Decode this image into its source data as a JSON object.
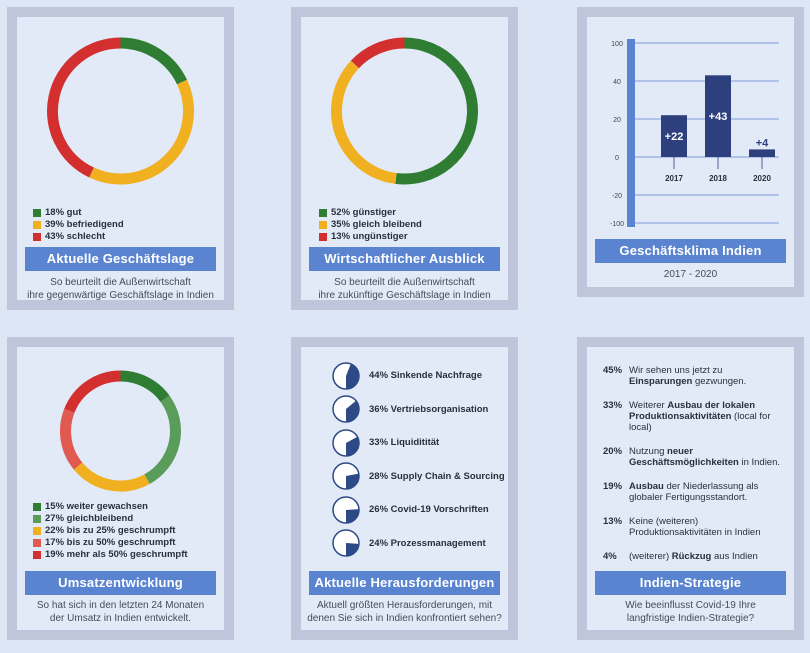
{
  "colors": {
    "green": "#2e7d32",
    "green_light": "#5a9c5a",
    "yellow": "#f0b020",
    "red": "#d32f2f",
    "red_light": "#e05a4f",
    "bar": "#2d3f7c",
    "banner": "#5b84d0",
    "pie_fill": "#2d4a86"
  },
  "cards": {
    "geschaeftslage": {
      "title": "Aktuelle Geschäftslage",
      "caption_line1": "So beurteilt die Außenwirtschaft",
      "caption_line2": "ihre gegenwärtige Geschäftslage in Indien",
      "legend": [
        "18% gut",
        "39% befriedigend",
        "43% schlecht"
      ]
    },
    "ausblick": {
      "title": "Wirtschaftlicher Ausblick",
      "caption_line1": "So beurteilt die Außenwirtschaft",
      "caption_line2": "ihre zukünftige Geschäftslage in Indien",
      "legend": [
        "52% günstiger",
        "35% gleich bleibend",
        "13% ungünstiger"
      ]
    },
    "klima": {
      "title": "Geschäftsklima Indien",
      "caption_line1": "2017 - 2020"
    },
    "umsatz": {
      "title": "Umsatzentwicklung",
      "caption_line1": "So hat sich in den letzten 24 Monaten",
      "caption_line2": "der Umsatz in Indien entwickelt.",
      "legend": [
        "15% weiter gewachsen",
        "27% gleichbleibend",
        "22% bis zu 25% geschrumpft",
        "17% bis zu 50% geschrumpft",
        "19% mehr als 50% geschrumpft"
      ]
    },
    "herausforderungen": {
      "title": "Aktuelle Herausforderungen",
      "caption_line1": "Aktuell größten Herausforderungen, mit",
      "caption_line2": "denen Sie sich in Indien konfrontiert sehen?",
      "items": [
        {
          "value": 44,
          "label": "44% Sinkende Nachfrage"
        },
        {
          "value": 36,
          "label": "36% Vertriebsorganisation"
        },
        {
          "value": 33,
          "label": "33% Liquiditität"
        },
        {
          "value": 28,
          "label": "28% Supply Chain & Sourcing"
        },
        {
          "value": 26,
          "label": "26% Covid-19 Vorschriften"
        },
        {
          "value": 24,
          "label": "24% Prozessmanagement"
        }
      ]
    },
    "strategie": {
      "title": "Indien-Strategie",
      "caption_line1": "Wie beeinflusst Covid-19 Ihre",
      "caption_line2": "langfristige Indien-Strategie?",
      "items": [
        {
          "pct": "45%",
          "pre": "Wir sehen uns jetzt zu ",
          "bold": "Einsparungen",
          "post": " gezwungen."
        },
        {
          "pct": "33%",
          "pre": "Weiterer ",
          "bold": "Ausbau der lokalen Produktionsaktivitäten",
          "post": " (local for local)"
        },
        {
          "pct": "20%",
          "pre": "Nutzung ",
          "bold": "neuer Geschäftsmöglichkeiten",
          "post": " in Indien."
        },
        {
          "pct": "19%",
          "pre": "",
          "bold": "Ausbau",
          "post": " der Niederlassung als globaler Fertigungsstandort."
        },
        {
          "pct": "13%",
          "pre": "Keine (weiteren) Produktionsaktivitäten in Indien",
          "bold": "",
          "post": ""
        },
        {
          "pct": "4%",
          "pre": "(weiterer) ",
          "bold": "Rückzug",
          "post": " aus Indien"
        }
      ]
    }
  },
  "chart_data": [
    {
      "type": "pie",
      "title": "Aktuelle Geschäftslage",
      "categories": [
        "gut",
        "befriedigend",
        "schlecht"
      ],
      "values": [
        18,
        39,
        43
      ],
      "colors": [
        "#2e7d32",
        "#f0b020",
        "#d32f2f"
      ]
    },
    {
      "type": "pie",
      "title": "Wirtschaftlicher Ausblick",
      "categories": [
        "günstiger",
        "gleich bleibend",
        "ungünstiger"
      ],
      "values": [
        52,
        35,
        13
      ],
      "colors": [
        "#2e7d32",
        "#f0b020",
        "#d32f2f"
      ]
    },
    {
      "type": "bar",
      "title": "Geschäftsklima Indien",
      "categories": [
        "2017",
        "2018",
        "2020"
      ],
      "values": [
        22,
        43,
        4
      ],
      "data_labels": [
        "+22",
        "+43",
        "+4"
      ],
      "ylim": [
        -100,
        100
      ],
      "yticks": [
        "100",
        "40",
        "20",
        "0",
        "-20",
        "-100"
      ],
      "grid": true
    },
    {
      "type": "pie",
      "title": "Umsatzentwicklung",
      "categories": [
        "weiter gewachsen",
        "gleichbleibend",
        "bis zu 25% geschrumpft",
        "bis zu 50% geschrumpft",
        "mehr als 50% geschrumpft"
      ],
      "values": [
        15,
        27,
        22,
        17,
        19
      ],
      "colors": [
        "#2e7d32",
        "#5a9c5a",
        "#f0b020",
        "#e05a4f",
        "#d32f2f"
      ]
    },
    {
      "type": "bar",
      "title": "Aktuelle Herausforderungen",
      "categories": [
        "Sinkende Nachfrage",
        "Vertriebsorganisation",
        "Liquiditität",
        "Supply Chain & Sourcing",
        "Covid-19 Vorschriften",
        "Prozessmanagement"
      ],
      "values": [
        44,
        36,
        33,
        28,
        26,
        24
      ]
    }
  ]
}
